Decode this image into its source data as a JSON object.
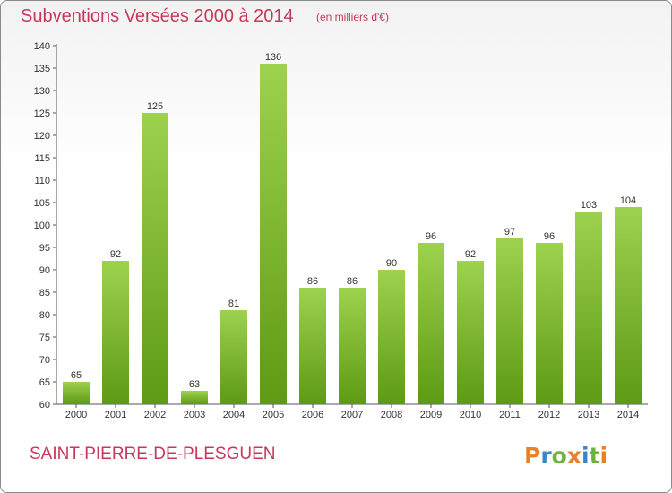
{
  "header": {
    "title": "Subventions Versées 2000 à 2014",
    "unit": "(en milliers d'€)"
  },
  "footer": {
    "city": "SAINT-PIERRE-DE-PLESGUEN",
    "brand": "Proxiti"
  },
  "colors": {
    "title": "#c8385a",
    "bar_top": "#9dd24e",
    "bar_bottom": "#5e9a14",
    "brand_letters": [
      "#e8812c",
      "#3a86c8",
      "#6cb33f",
      "#e8812c",
      "#3a86c8",
      "#6cb33f",
      "#e8812c"
    ]
  },
  "chart_data": {
    "type": "bar",
    "categories": [
      "2000",
      "2001",
      "2002",
      "2003",
      "2004",
      "2005",
      "2006",
      "2007",
      "2008",
      "2009",
      "2010",
      "2011",
      "2012",
      "2013",
      "2014"
    ],
    "values": [
      65,
      92,
      125,
      63,
      81,
      136,
      86,
      86,
      90,
      96,
      92,
      97,
      96,
      103,
      104
    ],
    "title": "Subventions Versées 2000 à 2014",
    "xlabel": "",
    "ylabel": "",
    "ylim": [
      60,
      140
    ],
    "yticks": [
      60,
      65,
      70,
      75,
      80,
      85,
      90,
      95,
      100,
      105,
      110,
      115,
      120,
      125,
      130,
      135,
      140
    ],
    "grid": false,
    "legend": "none"
  }
}
